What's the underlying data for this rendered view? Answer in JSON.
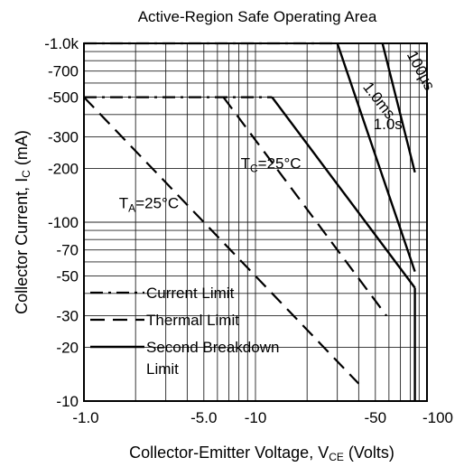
{
  "chart_data": {
    "type": "line",
    "title": "Active-Region Safe Operating Area",
    "xlabel": {
      "main": "Collector-Emitter Voltage, V",
      "sub": "CE",
      "suffix": " (Volts)"
    },
    "ylabel": {
      "main": "Collector Current, I",
      "sub": "C",
      "suffix": " (mA)"
    },
    "x_scale": "log",
    "y_scale": "log",
    "xlim": [
      1,
      100
    ],
    "ylim": [
      10,
      1000
    ],
    "grid": true,
    "x_ticks": [
      {
        "value": 1,
        "label": "-1.0"
      },
      {
        "value": 5,
        "label": "-5.0"
      },
      {
        "value": 10,
        "label": "-10"
      },
      {
        "value": 50,
        "label": "-50"
      },
      {
        "value": 100,
        "label": "-100"
      }
    ],
    "y_ticks": [
      {
        "value": 1000,
        "label": "-1.0k"
      },
      {
        "value": 700,
        "label": "-700"
      },
      {
        "value": 500,
        "label": "-500"
      },
      {
        "value": 300,
        "label": "-300"
      },
      {
        "value": 200,
        "label": "-200"
      },
      {
        "value": 100,
        "label": "-100"
      },
      {
        "value": 70,
        "label": "-70"
      },
      {
        "value": 50,
        "label": "-50"
      },
      {
        "value": 30,
        "label": "-30"
      },
      {
        "value": 20,
        "label": "-20"
      },
      {
        "value": 10,
        "label": "-10"
      }
    ],
    "series": [
      {
        "name": "Current Limit",
        "style": "dashdot",
        "points": [
          [
            1,
            1000
          ],
          [
            30,
            1000
          ]
        ]
      },
      {
        "name": "Current Limit",
        "style": "dashdot",
        "points": [
          [
            1,
            500
          ],
          [
            12.5,
            500
          ]
        ]
      },
      {
        "name": "Thermal Limit",
        "style": "dashed",
        "points": [
          [
            1,
            500
          ],
          [
            40,
            12.5
          ]
        ]
      },
      {
        "name": "Thermal Limit",
        "style": "dashed",
        "points": [
          [
            6.5,
            500
          ],
          [
            58,
            30
          ]
        ]
      },
      {
        "name": "Second Breakdown Limit",
        "style": "solid",
        "points": [
          [
            12.5,
            500
          ],
          [
            85,
            43
          ]
        ]
      },
      {
        "name": "Second Breakdown Limit",
        "style": "solid",
        "points": [
          [
            30,
            1000
          ],
          [
            85,
            53
          ]
        ]
      },
      {
        "name": "Second Breakdown Limit",
        "style": "solid",
        "points": [
          [
            55,
            1000
          ],
          [
            85,
            190
          ]
        ]
      },
      {
        "name": "Second Breakdown Limit",
        "style": "solid",
        "points": [
          [
            85,
            43
          ],
          [
            85,
            10
          ]
        ]
      }
    ],
    "annotations": [
      {
        "text": "100µs",
        "x": 90,
        "y": 700
      },
      {
        "text": "1.0ms",
        "x": 70,
        "y": 420
      },
      {
        "text": "1.0s",
        "x": 30,
        "y": 250
      },
      {
        "main": "T",
        "sub": "C",
        "suffix": "=25°C",
        "x": 8.2,
        "y": 200
      },
      {
        "main": "T",
        "sub": "A",
        "suffix": "=25°C",
        "x": 1.6,
        "y": 120
      }
    ],
    "legend": {
      "position": "lower-left",
      "entries": [
        {
          "style": "dashdot",
          "lines": [
            "Current Limit"
          ]
        },
        {
          "style": "dashed",
          "lines": [
            "Thermal Limit"
          ]
        },
        {
          "style": "solid",
          "lines": [
            "Second  Breakdown",
            "Limit"
          ]
        }
      ]
    }
  }
}
